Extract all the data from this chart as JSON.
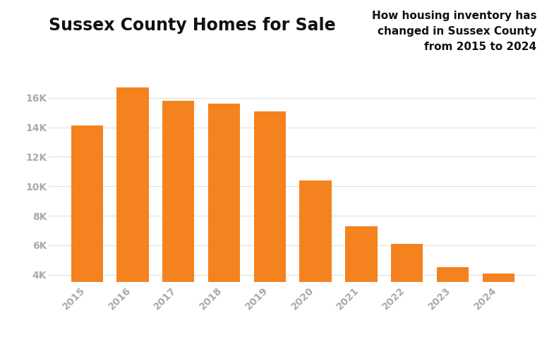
{
  "title": "Sussex County Homes for Sale",
  "subtitle": "How housing inventory has\nchanged in Sussex County\nfrom 2015 to 2024",
  "categories": [
    "2015",
    "2016",
    "2017",
    "2018",
    "2019",
    "2020",
    "2021",
    "2022",
    "2023",
    "2024"
  ],
  "values": [
    14100,
    16700,
    15800,
    15600,
    15100,
    10400,
    7300,
    6100,
    4500,
    4100
  ],
  "bar_color": "#F4821E",
  "background_color": "#FFFFFF",
  "ylim": [
    3500,
    17500
  ],
  "yticks": [
    4000,
    6000,
    8000,
    10000,
    12000,
    14000,
    16000
  ],
  "ytick_labels": [
    "4K",
    "6K",
    "8K",
    "10K",
    "12K",
    "14K",
    "16K"
  ],
  "title_fontsize": 17,
  "subtitle_fontsize": 11,
  "tick_fontsize": 10,
  "tick_color": "#aaaaaa",
  "grid_color": "#e0e0e0"
}
